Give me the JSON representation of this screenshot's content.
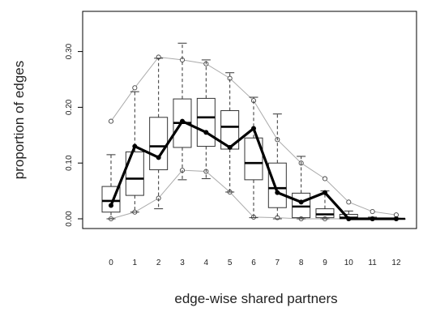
{
  "chart_data": {
    "type": "boxplot",
    "xlabel": "edge-wise shared partners",
    "ylabel": "proportion of edges",
    "categories": [
      "0",
      "1",
      "2",
      "3",
      "4",
      "5",
      "6",
      "7",
      "8",
      "9",
      "10",
      "11",
      "12"
    ],
    "y_ticks": [
      "0.00",
      "0.10",
      "0.20",
      "0.30"
    ],
    "ylim": [
      -0.01,
      0.355
    ],
    "grid": false,
    "legend": "none",
    "boxes": [
      {
        "whisker_low": 0.0,
        "q1": 0.012,
        "median": 0.032,
        "q3": 0.058,
        "whisker_high": 0.115
      },
      {
        "whisker_low": 0.012,
        "q1": 0.042,
        "median": 0.072,
        "q3": 0.12,
        "whisker_high": 0.228
      },
      {
        "whisker_low": 0.018,
        "q1": 0.088,
        "median": 0.13,
        "q3": 0.182,
        "whisker_high": 0.288
      },
      {
        "whisker_low": 0.07,
        "q1": 0.128,
        "median": 0.172,
        "q3": 0.215,
        "whisker_high": 0.315
      },
      {
        "whisker_low": 0.072,
        "q1": 0.13,
        "median": 0.182,
        "q3": 0.216,
        "whisker_high": 0.285
      },
      {
        "whisker_low": 0.048,
        "q1": 0.125,
        "median": 0.165,
        "q3": 0.194,
        "whisker_high": 0.262
      },
      {
        "whisker_low": 0.002,
        "q1": 0.07,
        "median": 0.1,
        "q3": 0.145,
        "whisker_high": 0.218
      },
      {
        "whisker_low": 0.0,
        "q1": 0.02,
        "median": 0.055,
        "q3": 0.1,
        "whisker_high": 0.188
      },
      {
        "whisker_low": 0.0,
        "q1": 0.002,
        "median": 0.022,
        "q3": 0.046,
        "whisker_high": 0.112
      },
      {
        "whisker_low": 0.0,
        "q1": 0.002,
        "median": 0.008,
        "q3": 0.018,
        "whisker_high": 0.05
      },
      {
        "whisker_low": 0.0,
        "q1": 0.0,
        "median": 0.002,
        "q3": 0.008,
        "whisker_high": 0.014
      },
      {
        "whisker_low": 0.0,
        "q1": 0.0,
        "median": 0.0,
        "q3": 0.0,
        "whisker_high": 0.003
      },
      {
        "whisker_low": 0.0,
        "q1": 0.0,
        "median": 0.0,
        "q3": 0.0,
        "whisker_high": 0.001
      }
    ],
    "observed": [
      0.024,
      0.13,
      0.11,
      0.175,
      0.155,
      0.128,
      0.162,
      0.047,
      0.03,
      0.047,
      0.0,
      0.0,
      0.0
    ],
    "upper_envelope": [
      0.175,
      0.235,
      0.29,
      0.285,
      0.278,
      0.252,
      0.212,
      0.142,
      0.1,
      0.072,
      0.03,
      0.013,
      0.007
    ],
    "lower_envelope": [
      0.0,
      0.012,
      0.037,
      0.087,
      0.085,
      0.048,
      0.003,
      0.002,
      0.0,
      0.0,
      0.0,
      0.0,
      0.0
    ],
    "colors": {
      "box": "#333333",
      "observed_line": "#000000",
      "envelope_line": "#aaaaaa",
      "envelope_marker": "#444444"
    }
  }
}
